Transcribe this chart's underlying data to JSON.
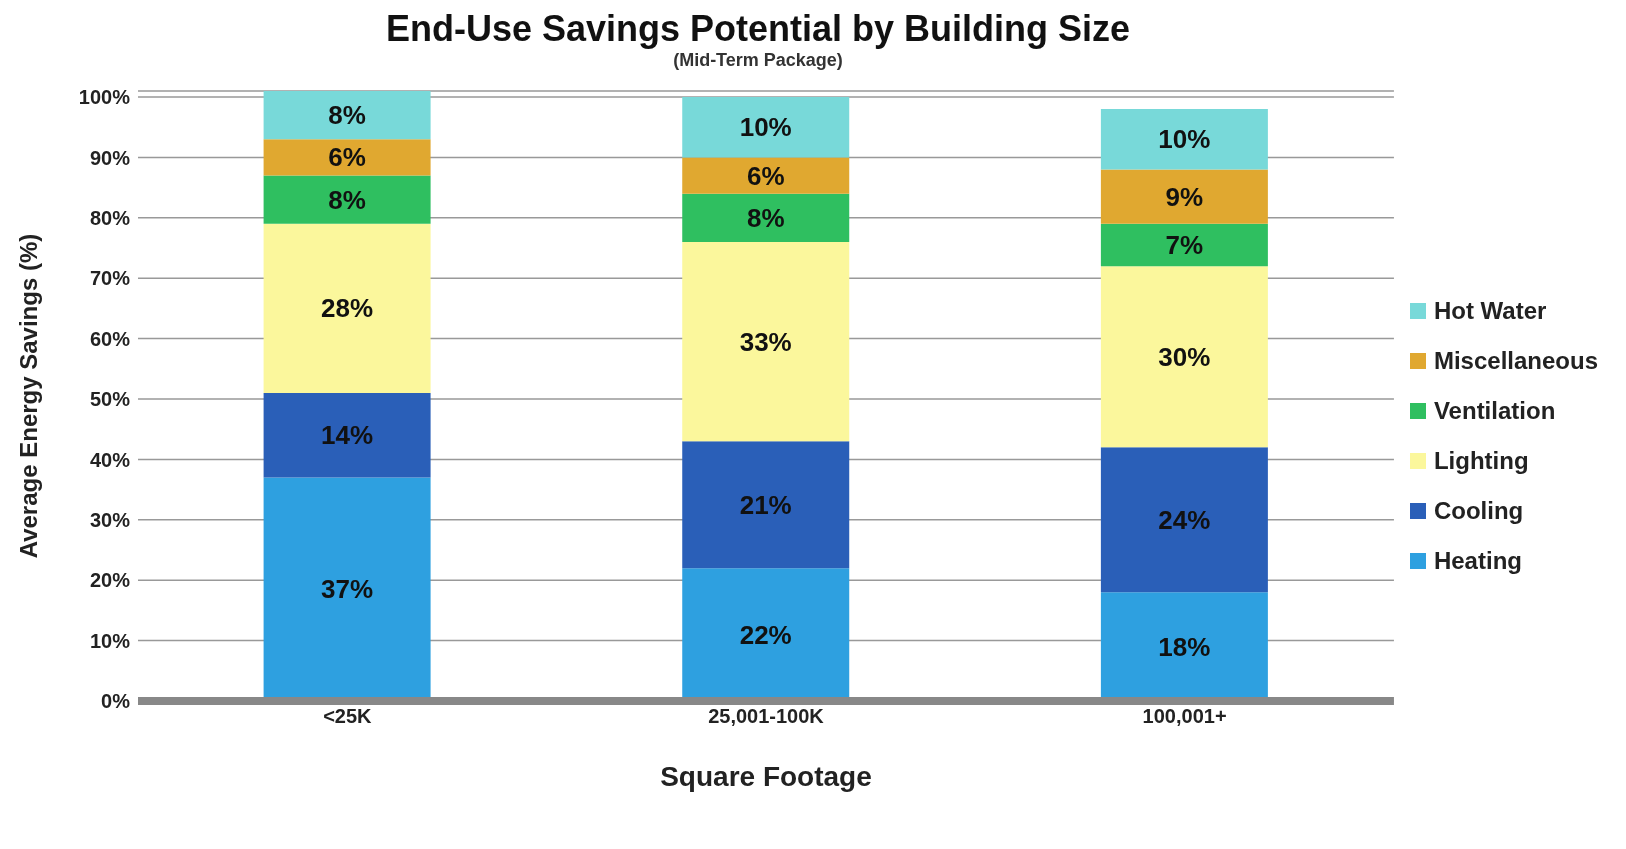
{
  "chart_data": {
    "type": "bar",
    "title": "End-Use Savings Potential by Building Size",
    "subtitle": "(Mid-Term Package)",
    "xlabel": "Square  Footage",
    "ylabel": "Average Energy Savings (%)",
    "categories": [
      "<25K",
      "25,001-100K",
      "100,001+"
    ],
    "stacked": true,
    "ylim": [
      0,
      101
    ],
    "yticks": [
      {
        "value": 0,
        "label": "0%"
      },
      {
        "value": 10,
        "label": "10%"
      },
      {
        "value": 20,
        "label": "20%"
      },
      {
        "value": 30,
        "label": "30%"
      },
      {
        "value": 40,
        "label": "40%"
      },
      {
        "value": 50,
        "label": "50%"
      },
      {
        "value": 60,
        "label": "60%"
      },
      {
        "value": 70,
        "label": "70%"
      },
      {
        "value": 80,
        "label": "80%"
      },
      {
        "value": 90,
        "label": "90%"
      },
      {
        "value": 100,
        "label": "100%"
      }
    ],
    "grid": "y",
    "legend": "right",
    "series": [
      {
        "name": "Heating",
        "color": "#2ea0e0",
        "values": [
          37,
          22,
          18
        ],
        "value_labels": [
          "37%",
          "22%",
          "18%"
        ]
      },
      {
        "name": "Cooling",
        "color": "#2a5fb8",
        "values": [
          14,
          21,
          24
        ],
        "value_labels": [
          "14%",
          "21%",
          "24%"
        ]
      },
      {
        "name": "Lighting",
        "color": "#fbf79c",
        "values": [
          28,
          33,
          30
        ],
        "value_labels": [
          "28%",
          "33%",
          "30%"
        ]
      },
      {
        "name": "Ventilation",
        "color": "#2fbf60",
        "values": [
          8,
          8,
          7
        ],
        "value_labels": [
          "8%",
          "8%",
          "7%"
        ]
      },
      {
        "name": "Miscellaneous",
        "color": "#e0a830",
        "values": [
          6,
          6,
          9
        ],
        "value_labels": [
          "6%",
          "6%",
          "9%"
        ]
      },
      {
        "name": "Hot Water",
        "color": "#78d9d9",
        "values": [
          8,
          10,
          10
        ],
        "value_labels": [
          "8%",
          "10%",
          "10%"
        ]
      }
    ]
  }
}
